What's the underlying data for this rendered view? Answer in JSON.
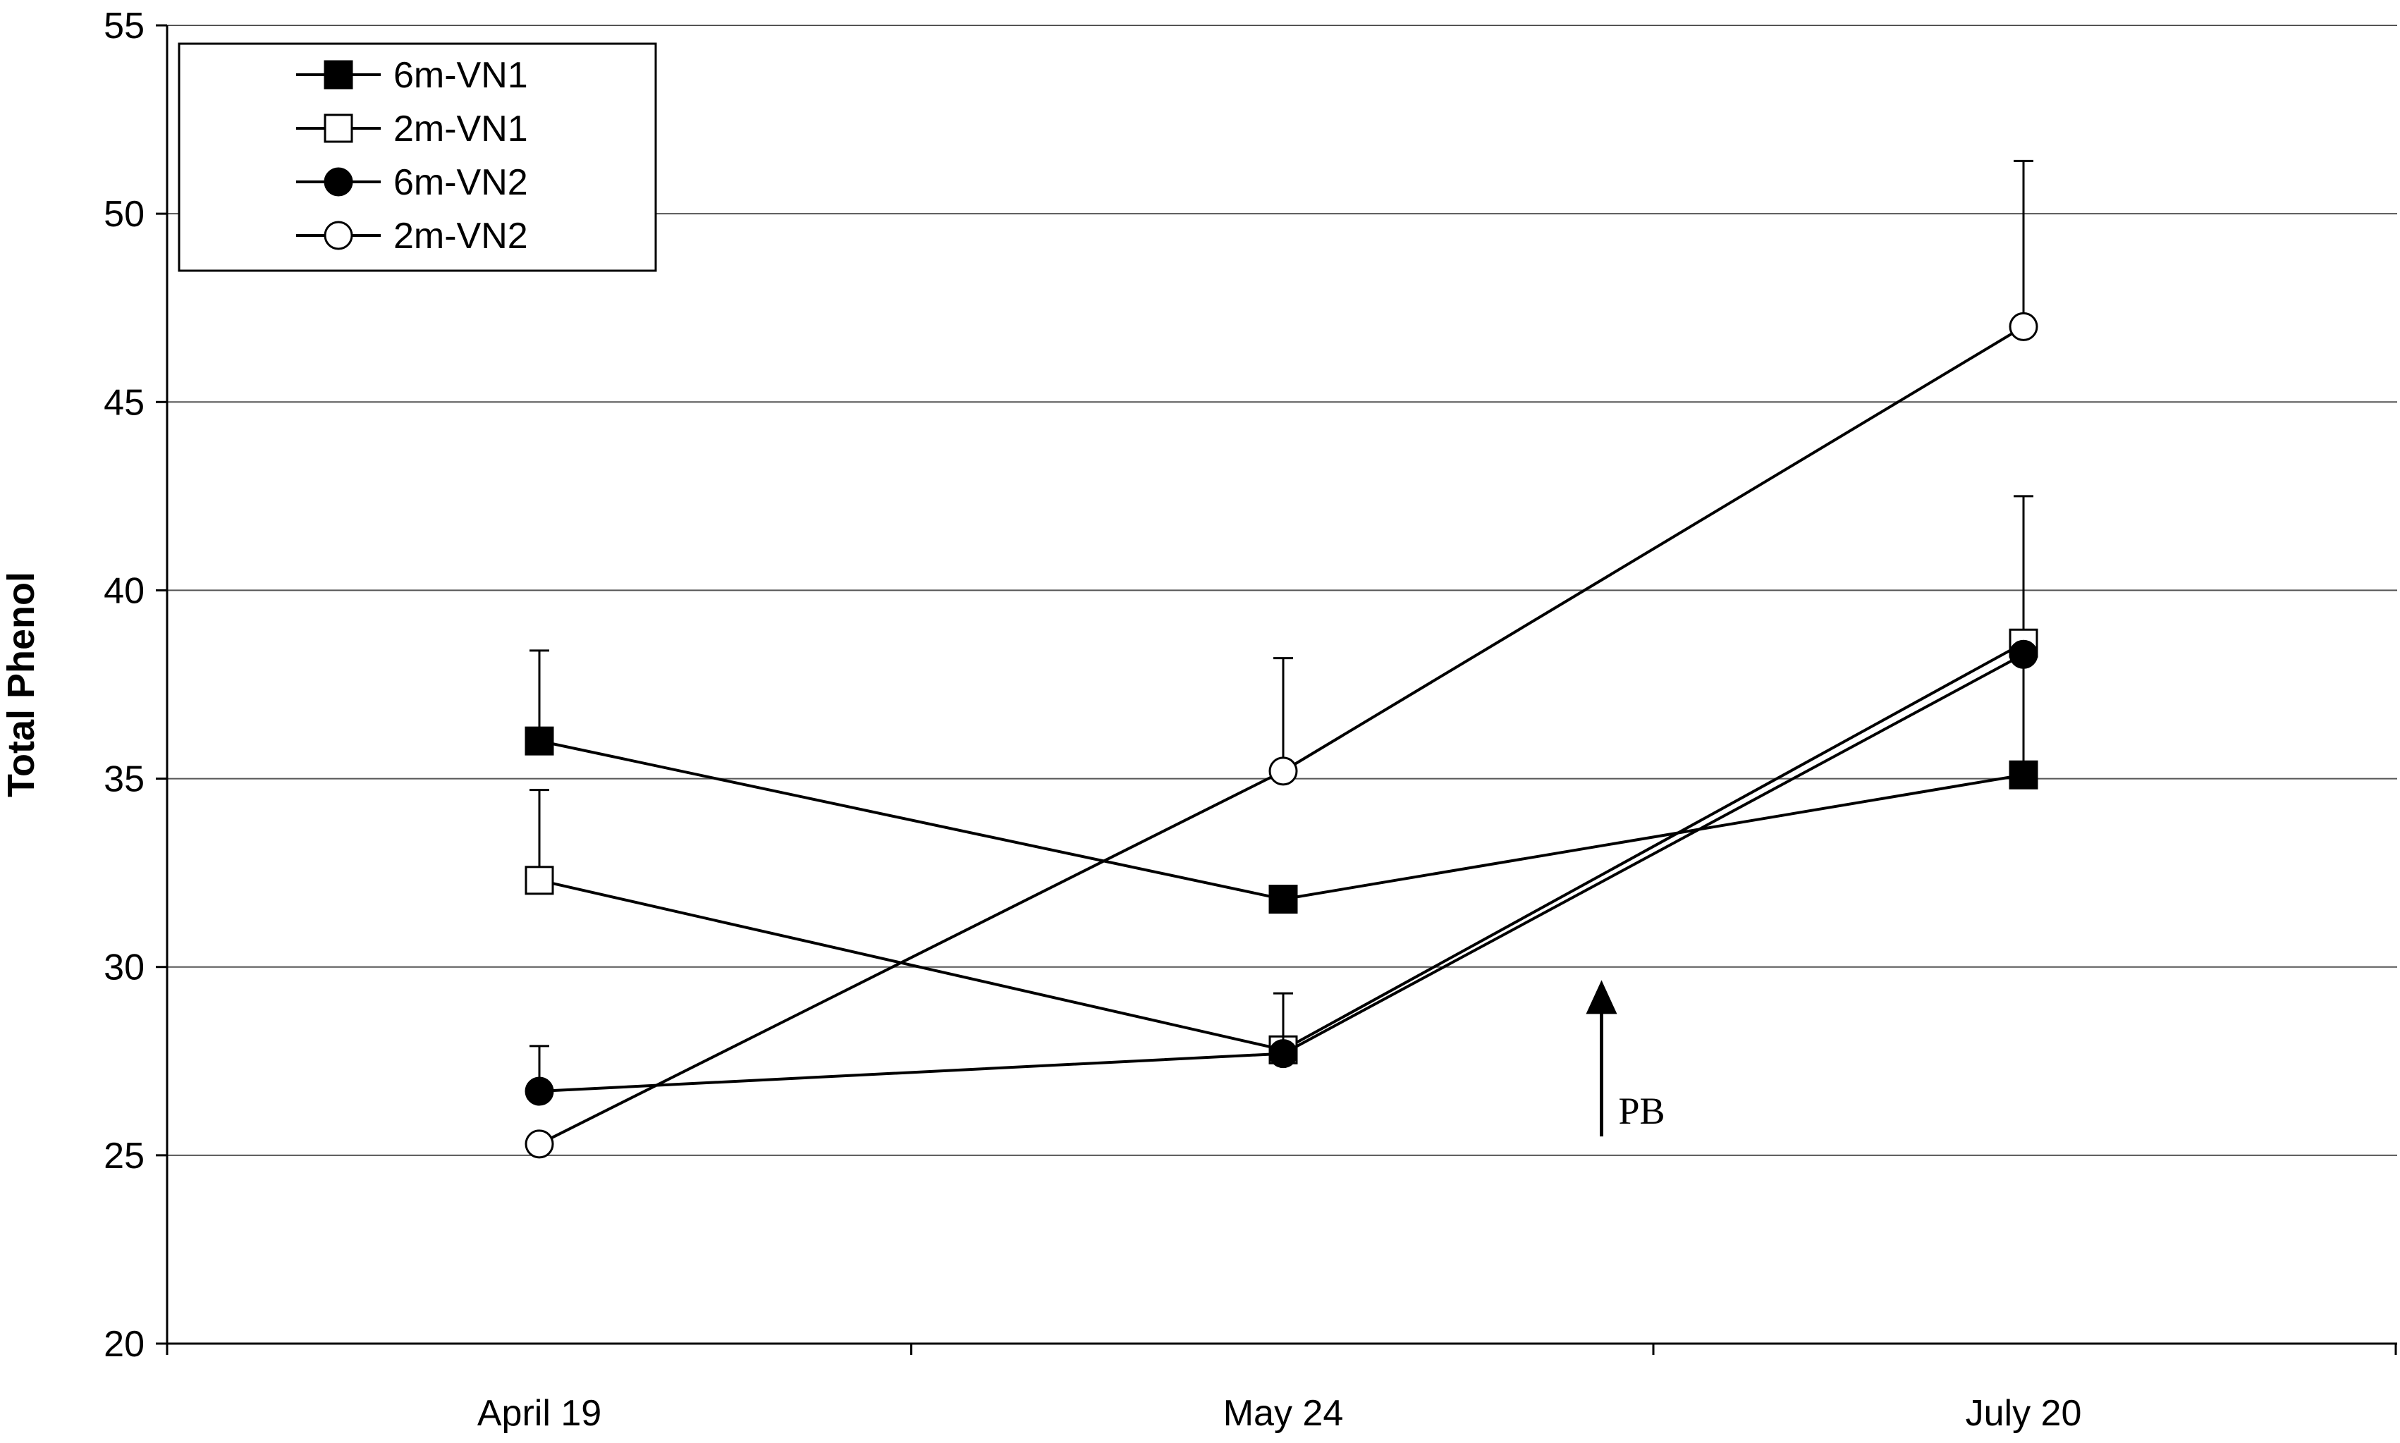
{
  "chart_data": {
    "type": "line",
    "title": "",
    "xlabel": "",
    "ylabel": "Total Phenol",
    "categories": [
      "April 19",
      "May 24",
      "July 20"
    ],
    "ylim": [
      20,
      55
    ],
    "yticks": [
      20,
      25,
      30,
      35,
      40,
      45,
      50,
      55
    ],
    "grid": true,
    "legend_position": "top-left",
    "series": [
      {
        "name": "6m-VN1",
        "marker": "square",
        "filled": true,
        "values": [
          36.0,
          31.8,
          35.1
        ],
        "error_bars": [
          2.4,
          0.0,
          3.0
        ]
      },
      {
        "name": "2m-VN1",
        "marker": "square",
        "filled": false,
        "values": [
          32.3,
          27.8,
          38.6
        ],
        "error_bars": [
          2.4,
          0.0,
          3.9
        ]
      },
      {
        "name": "6m-VN2",
        "marker": "circle",
        "filled": true,
        "values": [
          26.7,
          27.7,
          38.3
        ],
        "error_bars": [
          1.2,
          1.6,
          0.0
        ]
      },
      {
        "name": "2m-VN2",
        "marker": "circle",
        "filled": false,
        "values": [
          25.3,
          35.2,
          47.0
        ],
        "error_bars": [
          0.0,
          3.0,
          4.4
        ]
      }
    ],
    "annotations": [
      {
        "text": "PB",
        "type": "arrow-up",
        "x_position": 1.43,
        "y_from": 25.5,
        "y_to": 29.5
      }
    ]
  }
}
